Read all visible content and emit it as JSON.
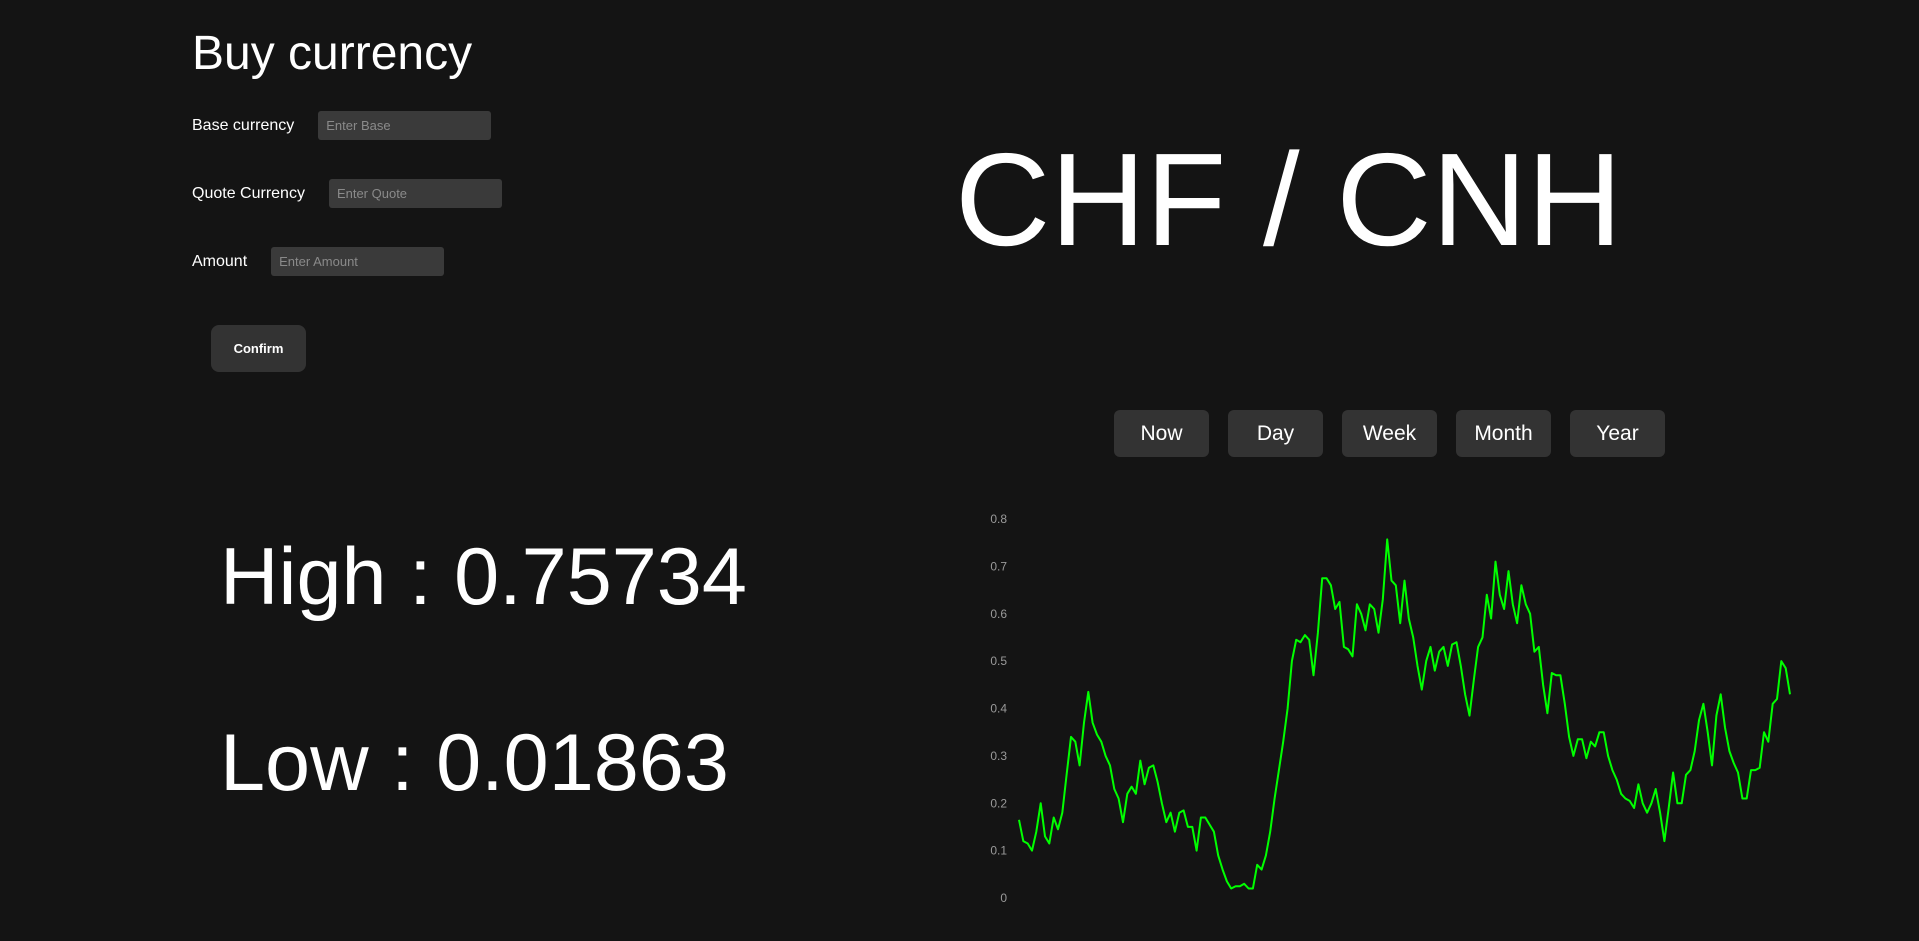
{
  "buy_panel": {
    "title": "Buy currency",
    "base": {
      "label": "Base currency",
      "placeholder": "Enter Base",
      "value": ""
    },
    "quote": {
      "label": "Quote Currency",
      "placeholder": "Enter Quote",
      "value": ""
    },
    "amount": {
      "label": "Amount",
      "placeholder": "Enter Amount",
      "value": ""
    },
    "confirm_label": "Confirm"
  },
  "pair": {
    "title": "CHF / CNH"
  },
  "range_buttons": [
    "Now",
    "Day",
    "Week",
    "Month",
    "Year"
  ],
  "stats": {
    "high": "High : 0.75734",
    "low": "Low : 0.01863"
  },
  "colors": {
    "background": "#141414",
    "button": "#333333",
    "input": "#3a3a3a",
    "line": "#00ff00"
  },
  "chart_data": {
    "type": "line",
    "title": "",
    "xlabel": "",
    "ylabel": "",
    "ylim": [
      0,
      0.8
    ],
    "yticks": [
      "0",
      "0.1",
      "0.2",
      "0.3",
      "0.4",
      "0.5",
      "0.6",
      "0.7",
      "0.8"
    ],
    "grid": false,
    "legend": "none",
    "series": [
      {
        "color": "#00ff00",
        "values": [
          0.165,
          0.12,
          0.115,
          0.1,
          0.14,
          0.2,
          0.13,
          0.115,
          0.17,
          0.145,
          0.18,
          0.26,
          0.34,
          0.33,
          0.28,
          0.37,
          0.435,
          0.37,
          0.345,
          0.33,
          0.3,
          0.28,
          0.23,
          0.21,
          0.16,
          0.22,
          0.235,
          0.22,
          0.29,
          0.24,
          0.275,
          0.28,
          0.245,
          0.2,
          0.16,
          0.18,
          0.14,
          0.18,
          0.185,
          0.15,
          0.15,
          0.1,
          0.17,
          0.17,
          0.155,
          0.14,
          0.09,
          0.06,
          0.035,
          0.02,
          0.025,
          0.025,
          0.03,
          0.02,
          0.02,
          0.07,
          0.06,
          0.09,
          0.14,
          0.21,
          0.27,
          0.33,
          0.4,
          0.5,
          0.545,
          0.54,
          0.555,
          0.545,
          0.47,
          0.56,
          0.675,
          0.675,
          0.66,
          0.61,
          0.625,
          0.53,
          0.525,
          0.51,
          0.62,
          0.6,
          0.565,
          0.62,
          0.61,
          0.56,
          0.63,
          0.757,
          0.67,
          0.66,
          0.58,
          0.67,
          0.59,
          0.55,
          0.49,
          0.44,
          0.5,
          0.53,
          0.48,
          0.52,
          0.53,
          0.49,
          0.535,
          0.54,
          0.49,
          0.43,
          0.385,
          0.46,
          0.53,
          0.55,
          0.64,
          0.59,
          0.71,
          0.64,
          0.61,
          0.69,
          0.62,
          0.58,
          0.66,
          0.62,
          0.6,
          0.52,
          0.53,
          0.45,
          0.39,
          0.475,
          0.47,
          0.47,
          0.41,
          0.34,
          0.3,
          0.335,
          0.335,
          0.295,
          0.33,
          0.32,
          0.35,
          0.35,
          0.3,
          0.27,
          0.25,
          0.22,
          0.21,
          0.205,
          0.19,
          0.24,
          0.2,
          0.18,
          0.2,
          0.23,
          0.18,
          0.12,
          0.19,
          0.265,
          0.2,
          0.2,
          0.26,
          0.27,
          0.31,
          0.375,
          0.41,
          0.35,
          0.28,
          0.385,
          0.43,
          0.36,
          0.31,
          0.285,
          0.265,
          0.21,
          0.21,
          0.27,
          0.27,
          0.275,
          0.35,
          0.33,
          0.41,
          0.42,
          0.5,
          0.485,
          0.43
        ]
      }
    ]
  }
}
